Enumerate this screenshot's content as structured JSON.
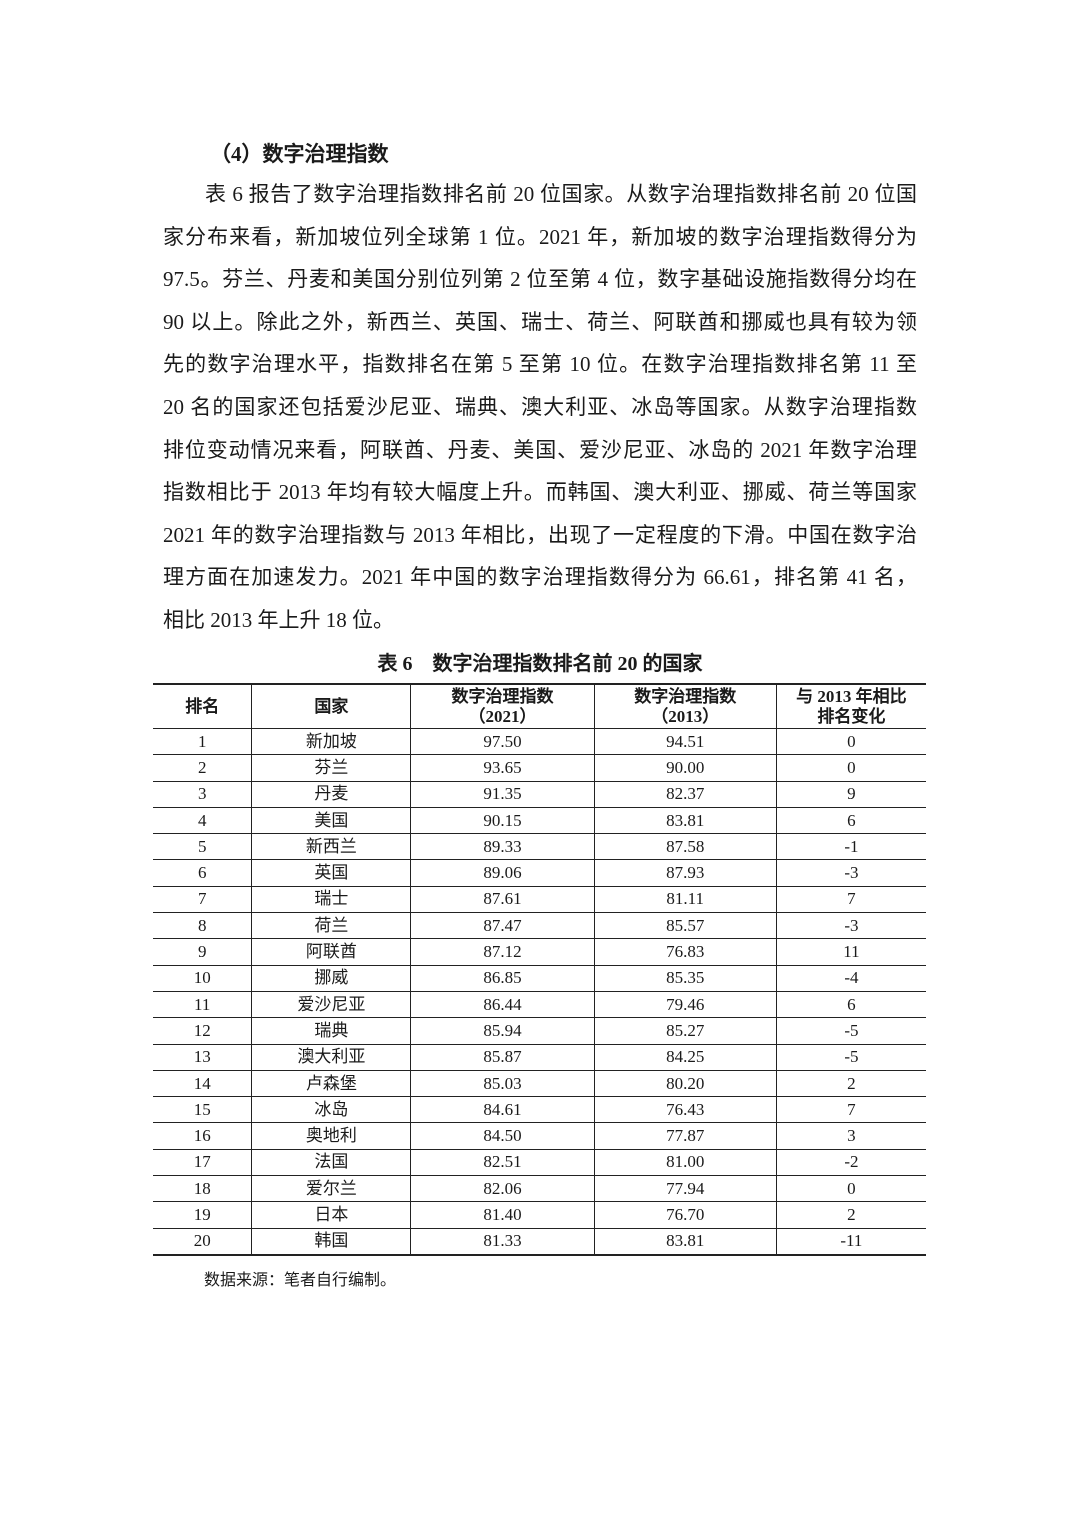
{
  "heading": "（4）数字治理指数",
  "paragraph_lines": [
    "表 6 报告了数字治理指数排名前 20 位国家。从数字治理指数排名前 20 位国",
    "家分布来看，新加坡位列全球第 1 位。2021 年，新加坡的数字治理指数得分为",
    "97.5。芬兰、丹麦和美国分别位列第 2 位至第 4 位，数字基础设施指数得分均在",
    "90 以上。除此之外，新西兰、英国、瑞士、荷兰、阿联酋和挪威也具有较为领",
    "先的数字治理水平，指数排名在第 5 至第 10 位。在数字治理指数排名第 11 至",
    "20 名的国家还包括爱沙尼亚、瑞典、澳大利亚、冰岛等国家。从数字治理指数",
    "排位变动情况来看，阿联酋、丹麦、美国、爱沙尼亚、冰岛的 2021 年数字治理",
    "指数相比于 2013 年均有较大幅度上升。而韩国、澳大利亚、挪威、荷兰等国家",
    "2021 年的数字治理指数与 2013 年相比，出现了一定程度的下滑。中国在数字治",
    "理方面在加速发力。2021 年中国的数字治理指数得分为 66.61，排名第 41 名，",
    "相比 2013 年上升 18 位。"
  ],
  "table": {
    "caption": "表 6　数字治理指数排名前 20 的国家",
    "headers": [
      [
        "排名"
      ],
      [
        "国家"
      ],
      [
        "数字治理指数",
        "（2021）"
      ],
      [
        "数字治理指数",
        "（2013）"
      ],
      [
        "与 2013 年相比",
        "排名变化"
      ]
    ],
    "rows": [
      [
        "1",
        "新加坡",
        "97.50",
        "94.51",
        "0"
      ],
      [
        "2",
        "芬兰",
        "93.65",
        "90.00",
        "0"
      ],
      [
        "3",
        "丹麦",
        "91.35",
        "82.37",
        "9"
      ],
      [
        "4",
        "美国",
        "90.15",
        "83.81",
        "6"
      ],
      [
        "5",
        "新西兰",
        "89.33",
        "87.58",
        "-1"
      ],
      [
        "6",
        "英国",
        "89.06",
        "87.93",
        "-3"
      ],
      [
        "7",
        "瑞士",
        "87.61",
        "81.11",
        "7"
      ],
      [
        "8",
        "荷兰",
        "87.47",
        "85.57",
        "-3"
      ],
      [
        "9",
        "阿联酋",
        "87.12",
        "76.83",
        "11"
      ],
      [
        "10",
        "挪威",
        "86.85",
        "85.35",
        "-4"
      ],
      [
        "11",
        "爱沙尼亚",
        "86.44",
        "79.46",
        "6"
      ],
      [
        "12",
        "瑞典",
        "85.94",
        "85.27",
        "-5"
      ],
      [
        "13",
        "澳大利亚",
        "85.87",
        "84.25",
        "-5"
      ],
      [
        "14",
        "卢森堡",
        "85.03",
        "80.20",
        "2"
      ],
      [
        "15",
        "冰岛",
        "84.61",
        "76.43",
        "7"
      ],
      [
        "16",
        "奥地利",
        "84.50",
        "77.87",
        "3"
      ],
      [
        "17",
        "法国",
        "82.51",
        "81.00",
        "-2"
      ],
      [
        "18",
        "爱尔兰",
        "82.06",
        "77.94",
        "0"
      ],
      [
        "19",
        "日本",
        "81.40",
        "76.70",
        "2"
      ],
      [
        "20",
        "韩国",
        "81.33",
        "83.81",
        "-11"
      ]
    ]
  },
  "source_note": "数据来源：笔者自行编制。"
}
